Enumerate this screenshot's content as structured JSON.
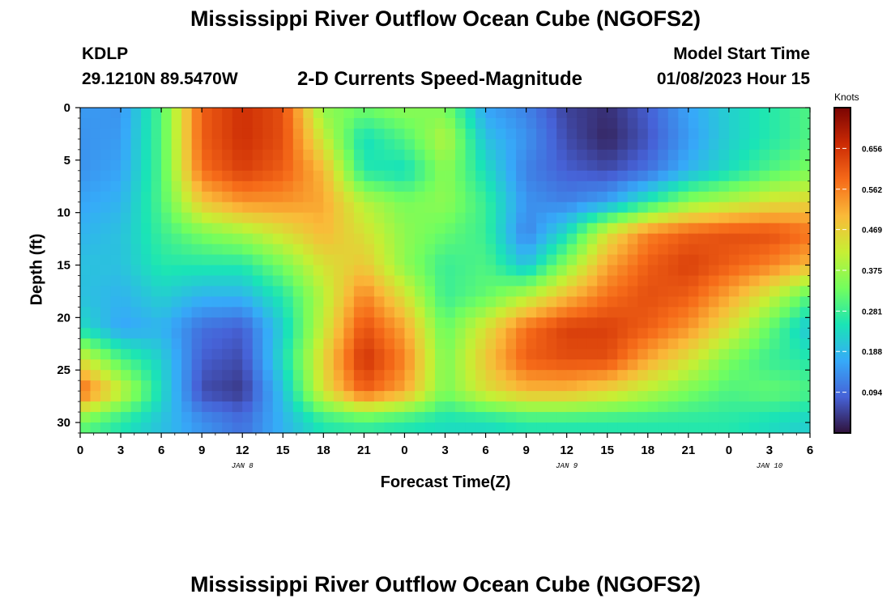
{
  "header": {
    "title": "Mississippi River Outflow Ocean Cube (NGOFS2)",
    "station": "KDLP",
    "coords": "29.1210N  89.5470W",
    "subtitle": "2-D Currents Speed-Magnitude",
    "start_label": "Model Start Time",
    "start_value": "01/08/2023 Hour 15"
  },
  "footer": {
    "title": "Mississippi River Outflow Ocean Cube (NGOFS2)"
  },
  "chart_data": {
    "type": "heatmap",
    "title": "2-D Currents Speed-Magnitude",
    "xlabel": "Forecast Time(Z)",
    "ylabel": "Depth (ft)",
    "x_unit": "hours since Jan 8 00Z",
    "xlim": [
      0,
      54
    ],
    "ylim": [
      31,
      0
    ],
    "x_ticks": [
      0,
      3,
      6,
      9,
      12,
      15,
      18,
      21,
      24,
      27,
      30,
      33,
      36,
      39,
      42,
      45,
      48,
      51,
      54
    ],
    "x_tick_labels": [
      "0",
      "3",
      "6",
      "9",
      "12",
      "15",
      "18",
      "21",
      "0",
      "3",
      "6",
      "9",
      "12",
      "15",
      "18",
      "21",
      "0",
      "3",
      "6"
    ],
    "y_ticks": [
      0,
      5,
      10,
      15,
      20,
      25,
      30
    ],
    "day_labels": [
      {
        "x": 12,
        "label": "JAN 8"
      },
      {
        "x": 36,
        "label": "JAN 9"
      },
      {
        "x": 51,
        "label": "JAN 10"
      }
    ],
    "colorbar": {
      "unit": "Knots",
      "min": 0.0,
      "max": 0.75,
      "ticks": [
        0.094,
        0.188,
        0.281,
        0.375,
        0.469,
        0.562,
        0.656
      ],
      "colormap": [
        "#30123b",
        "#4662d7",
        "#36aaf9",
        "#1ae4b6",
        "#72fe5e",
        "#c7ef34",
        "#faba39",
        "#f66b19",
        "#cb2a04",
        "#7a0403"
      ]
    },
    "depths_ft": [
      0,
      3,
      6,
      9,
      12,
      15,
      18,
      21,
      24,
      27,
      30
    ],
    "times_h": [
      0,
      3,
      6,
      9,
      12,
      15,
      18,
      21,
      24,
      27,
      30,
      33,
      36,
      39,
      42,
      45,
      48,
      51,
      54
    ],
    "values": [
      [
        0.15,
        0.14,
        0.3,
        0.6,
        0.66,
        0.62,
        0.36,
        0.33,
        0.36,
        0.34,
        0.16,
        0.12,
        0.05,
        0.03,
        0.08,
        0.16,
        0.22,
        0.26,
        0.3
      ],
      [
        0.14,
        0.15,
        0.3,
        0.6,
        0.66,
        0.62,
        0.42,
        0.24,
        0.3,
        0.4,
        0.2,
        0.14,
        0.06,
        0.02,
        0.07,
        0.15,
        0.22,
        0.26,
        0.3
      ],
      [
        0.14,
        0.16,
        0.3,
        0.58,
        0.64,
        0.6,
        0.5,
        0.26,
        0.24,
        0.36,
        0.24,
        0.12,
        0.08,
        0.06,
        0.1,
        0.18,
        0.24,
        0.3,
        0.34
      ],
      [
        0.16,
        0.18,
        0.3,
        0.48,
        0.54,
        0.54,
        0.52,
        0.4,
        0.34,
        0.36,
        0.28,
        0.14,
        0.12,
        0.16,
        0.26,
        0.36,
        0.4,
        0.44,
        0.46
      ],
      [
        0.18,
        0.2,
        0.28,
        0.34,
        0.38,
        0.44,
        0.5,
        0.44,
        0.36,
        0.32,
        0.28,
        0.12,
        0.24,
        0.44,
        0.56,
        0.6,
        0.62,
        0.62,
        0.58
      ],
      [
        0.2,
        0.2,
        0.26,
        0.26,
        0.26,
        0.34,
        0.44,
        0.48,
        0.36,
        0.28,
        0.3,
        0.2,
        0.36,
        0.52,
        0.6,
        0.64,
        0.6,
        0.56,
        0.5
      ],
      [
        0.2,
        0.18,
        0.22,
        0.18,
        0.18,
        0.26,
        0.4,
        0.56,
        0.44,
        0.28,
        0.32,
        0.4,
        0.5,
        0.58,
        0.62,
        0.6,
        0.52,
        0.42,
        0.3
      ],
      [
        0.24,
        0.16,
        0.18,
        0.1,
        0.08,
        0.22,
        0.42,
        0.62,
        0.52,
        0.32,
        0.44,
        0.58,
        0.64,
        0.64,
        0.6,
        0.54,
        0.44,
        0.32,
        0.2
      ],
      [
        0.44,
        0.3,
        0.22,
        0.08,
        0.06,
        0.24,
        0.46,
        0.66,
        0.56,
        0.34,
        0.48,
        0.6,
        0.62,
        0.62,
        0.52,
        0.44,
        0.34,
        0.28,
        0.26
      ],
      [
        0.6,
        0.42,
        0.24,
        0.06,
        0.04,
        0.2,
        0.44,
        0.6,
        0.52,
        0.34,
        0.44,
        0.5,
        0.5,
        0.46,
        0.4,
        0.34,
        0.3,
        0.32,
        0.3
      ],
      [
        0.32,
        0.26,
        0.2,
        0.14,
        0.1,
        0.18,
        0.26,
        0.28,
        0.26,
        0.24,
        0.24,
        0.26,
        0.26,
        0.26,
        0.26,
        0.26,
        0.26,
        0.24,
        0.22
      ]
    ]
  }
}
